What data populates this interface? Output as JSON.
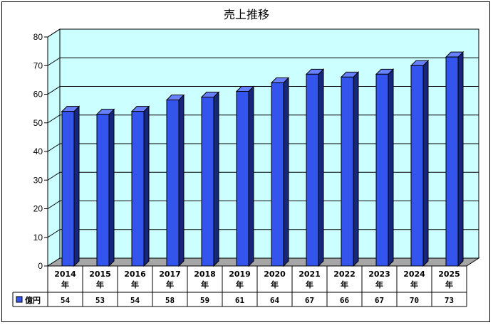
{
  "chart_data": {
    "type": "bar",
    "title": "売上推移",
    "categories": [
      "2014年",
      "2015年",
      "2016年",
      "2017年",
      "2018年",
      "2019年",
      "2020年",
      "2021年",
      "2022年",
      "2023年",
      "2024年",
      "2025年"
    ],
    "category_lines": [
      [
        "2014",
        "年"
      ],
      [
        "2015",
        "年"
      ],
      [
        "2016",
        "年"
      ],
      [
        "2017",
        "年"
      ],
      [
        "2018",
        "年"
      ],
      [
        "2019",
        "年"
      ],
      [
        "2020",
        "年"
      ],
      [
        "2021",
        "年"
      ],
      [
        "2022",
        "年"
      ],
      [
        "2023",
        "年"
      ],
      [
        "2024",
        "年"
      ],
      [
        "2025",
        "年"
      ]
    ],
    "series": [
      {
        "name": "億円",
        "values": [
          54,
          53,
          54,
          58,
          59,
          61,
          64,
          67,
          66,
          67,
          70,
          73
        ]
      }
    ],
    "data_table_values": [
      "54",
      "53",
      "54",
      "58",
      "59",
      "61",
      "64",
      "67",
      "66",
      "67",
      "70",
      "73"
    ],
    "ylim": [
      0,
      80
    ],
    "yticks": [
      "0",
      "10",
      "20",
      "30",
      "40",
      "50",
      "60",
      "70",
      "80"
    ],
    "grid": true,
    "legend": "data-table-left",
    "xlabel": "",
    "ylabel": "",
    "colors": {
      "bar_front": "#3355ee",
      "bar_top": "#6680ff",
      "bar_side": "#16267a",
      "wall": "#ccffff",
      "floor": "#a6a6a6",
      "legend_key": "#3355ee"
    }
  }
}
